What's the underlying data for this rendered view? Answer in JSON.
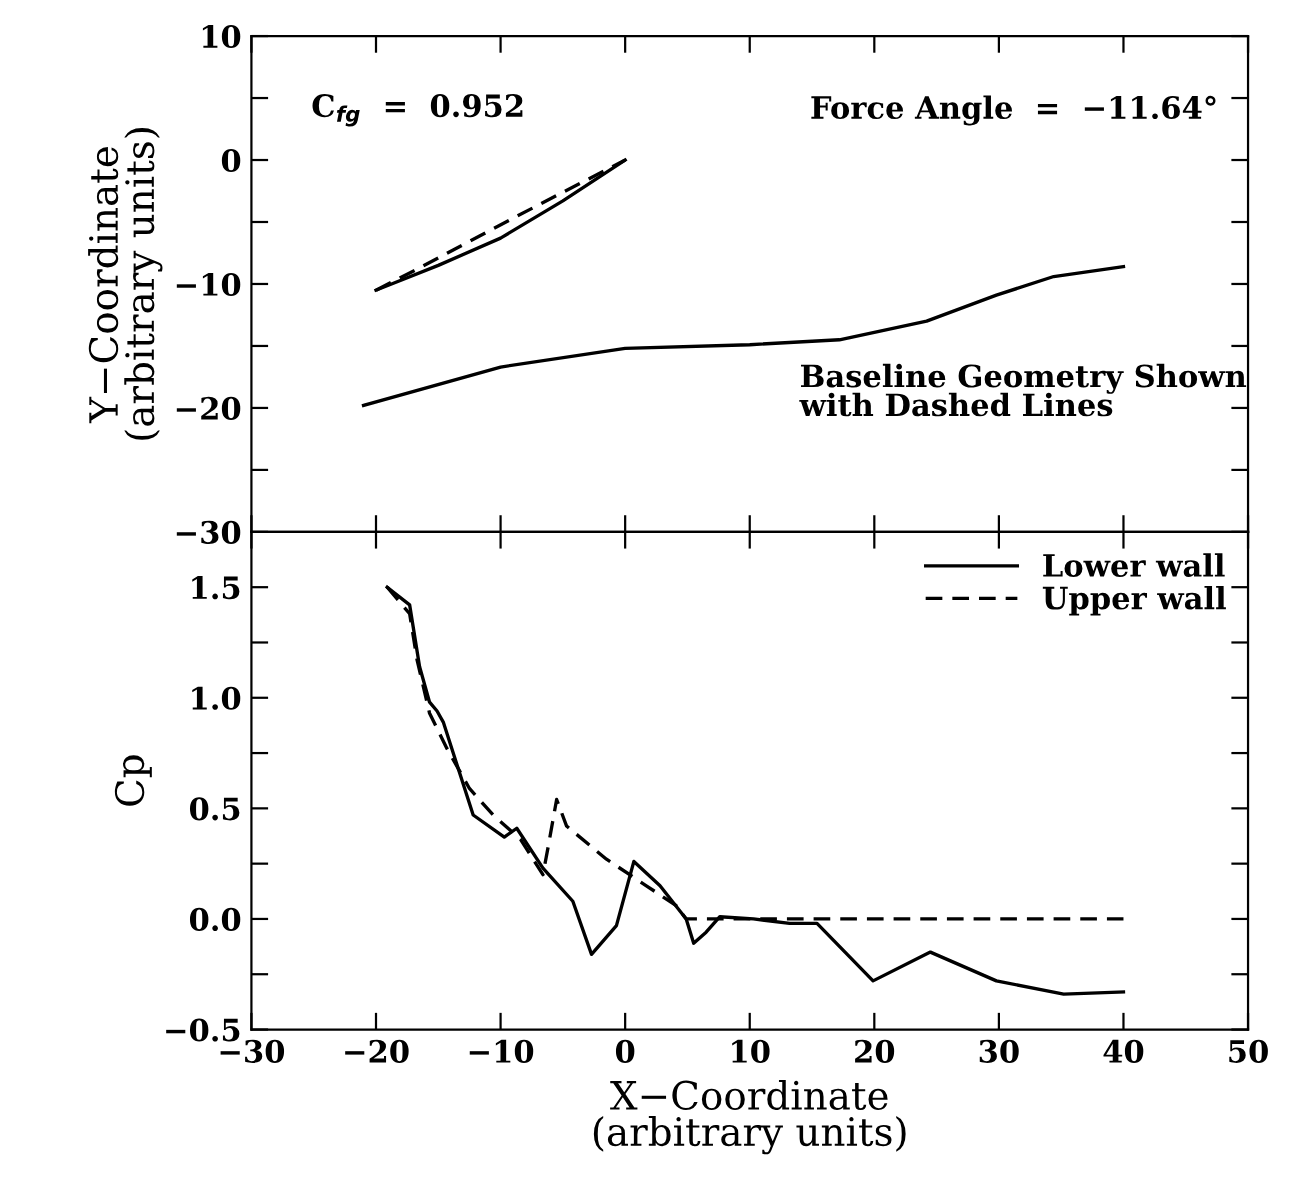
{
  "chart_data": [
    {
      "type": "line",
      "ylabel": "Y−Coordinate\n(arbitrary units)",
      "xlim": [
        -30,
        50
      ],
      "ylim": [
        -30,
        10
      ],
      "xticks": [
        {
          "value": -30,
          "label": null
        },
        {
          "value": -20,
          "label": null
        },
        {
          "value": -10,
          "label": null
        },
        {
          "value": 0,
          "label": null
        },
        {
          "value": 10,
          "label": null
        },
        {
          "value": 20,
          "label": null
        },
        {
          "value": 30,
          "label": null
        },
        {
          "value": 40,
          "label": null
        },
        {
          "value": 50,
          "label": null
        }
      ],
      "yticks": [
        {
          "value": -30,
          "label": "−30"
        },
        {
          "value": -25,
          "label": null
        },
        {
          "value": -20,
          "label": "−20"
        },
        {
          "value": -15,
          "label": null
        },
        {
          "value": -10,
          "label": "−10"
        },
        {
          "value": -5,
          "label": null
        },
        0,
        {
          "value": 5,
          "label": null
        },
        10
      ],
      "tick_labels": "y",
      "grid": false,
      "legend": false,
      "annotations": [
        "C$_{fg}$  =  0.952",
        "Force Angle  =  −11.64°",
        "Baseline Geometry Shown\nwith Dashed Lines"
      ],
      "series": [
        {
          "color": "#000000",
          "line_style": "solid",
          "x": [
            -20,
            -15,
            -10,
            -5,
            0
          ],
          "values": [
            -10.5,
            -8.5,
            -6.3,
            -3.3,
            0
          ]
        },
        {
          "color": "#000000",
          "line_style": "dashed",
          "x": [
            -20,
            -16.5,
            -9,
            -5,
            0
          ],
          "values": [
            -10.5,
            -8.7,
            -4.7,
            -2.6,
            0
          ]
        },
        {
          "color": "#000000",
          "line_style": "solid",
          "x": [
            -21,
            -10,
            0,
            10,
            17.2,
            24.2,
            29.8,
            34.4,
            40
          ],
          "values": [
            -19.8,
            -16.7,
            -15.2,
            -14.9,
            -14.5,
            -13.0,
            -10.9,
            -9.4,
            -8.6
          ]
        }
      ]
    },
    {
      "type": "line",
      "xlabel": "X−Coordinate\n(arbitrary units)",
      "ylabel": "Cp",
      "xlim": [
        -30,
        50
      ],
      "ylim": [
        -0.5,
        1.75
      ],
      "xticks": [
        {
          "value": -30,
          "label": "−30"
        },
        {
          "value": -20,
          "label": "−20"
        },
        {
          "value": -10,
          "label": "−10"
        },
        0,
        10,
        20,
        30,
        40,
        50
      ],
      "yticks": [
        {
          "value": -0.5,
          "label": "−0.5"
        },
        {
          "value": -0.25,
          "label": null
        },
        {
          "value": 0,
          "label": "0.0"
        },
        {
          "value": 0.25,
          "label": null
        },
        {
          "value": 0.5,
          "label": "0.5"
        },
        {
          "value": 0.75,
          "label": null
        },
        {
          "value": 1.0,
          "label": "1.0"
        },
        {
          "value": 1.25,
          "label": null
        },
        {
          "value": 1.5,
          "label": "1.5"
        }
      ],
      "grid": false,
      "legend": "top right",
      "series": [
        {
          "name": "Lower wall",
          "color": "#000000",
          "line_style": "solid",
          "x": [
            -19.1,
            -17.3,
            -16.5,
            -15.7,
            -15.1,
            -14.6,
            -12.2,
            -9.7,
            -8.7,
            -6.6,
            -4.2,
            -2.7,
            -0.7,
            0.7,
            2.8,
            4.9,
            5.5,
            6.5,
            7.6,
            10.3,
            13.2,
            15.4,
            19.9,
            24.5,
            29.8,
            35.2,
            40
          ],
          "values": [
            1.5,
            1.42,
            1.14,
            0.98,
            0.94,
            0.89,
            0.47,
            0.37,
            0.41,
            0.23,
            0.08,
            -0.16,
            -0.03,
            0.26,
            0.15,
            0.0,
            -0.11,
            -0.06,
            0.01,
            0.0,
            -0.02,
            -0.02,
            -0.28,
            -0.15,
            -0.28,
            -0.34,
            -0.33
          ]
        },
        {
          "name": "Upper wall",
          "color": "#000000",
          "line_style": "dashed",
          "x": [
            -19.1,
            -17.3,
            -16.7,
            -15.7,
            -14.3,
            -12.5,
            -10.6,
            -8.4,
            -6.6,
            -6.2,
            -5.5,
            -4.7,
            -1.5,
            1.7,
            4.1,
            4.9,
            40
          ],
          "values": [
            1.5,
            1.38,
            1.17,
            0.93,
            0.77,
            0.59,
            0.47,
            0.36,
            0.2,
            0.32,
            0.54,
            0.42,
            0.27,
            0.15,
            0.06,
            0.0,
            0.0
          ]
        }
      ]
    }
  ]
}
